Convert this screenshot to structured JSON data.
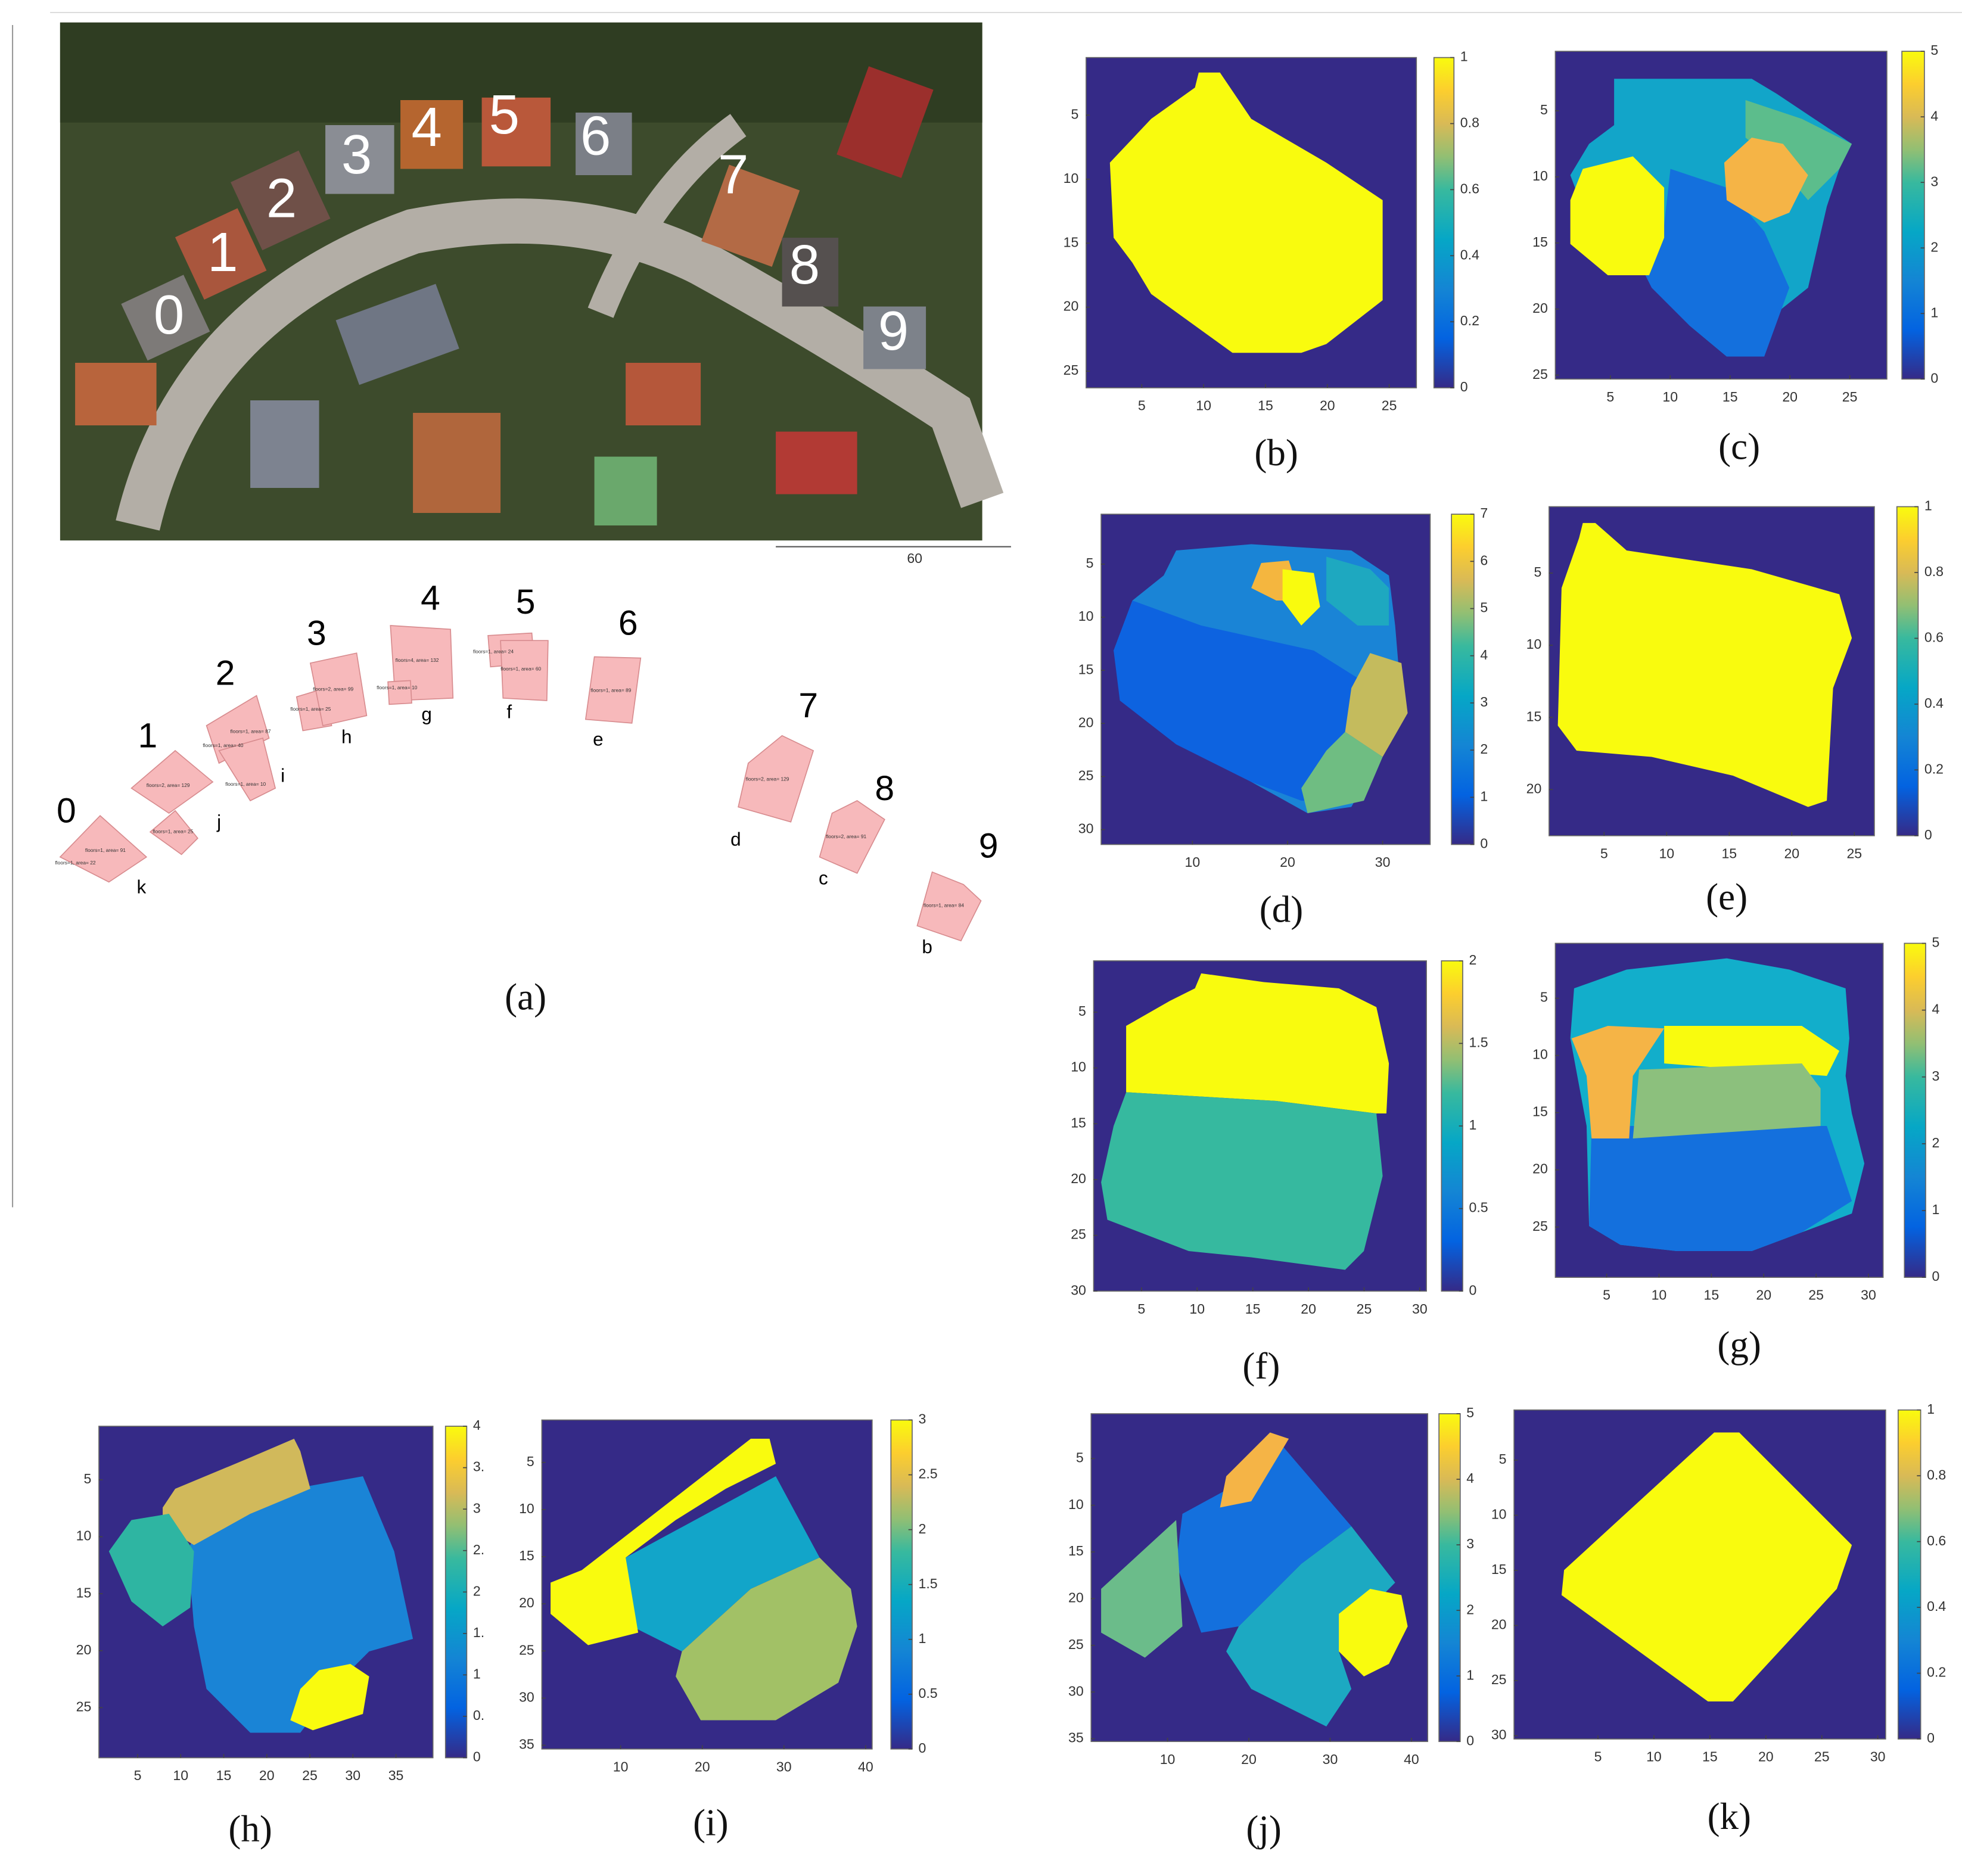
{
  "figure": {
    "panel_a": {
      "photo_labels": [
        "0",
        "1",
        "2",
        "3",
        "4",
        "5",
        "6",
        "7",
        "8",
        "9"
      ],
      "scale_label": "60",
      "house_labels": [
        "0",
        "1",
        "2",
        "3",
        "4",
        "5",
        "6",
        "7",
        "8",
        "9"
      ],
      "part_labels": [
        "k",
        "j",
        "i",
        "h",
        "g",
        "f",
        "e",
        "d",
        "c",
        "b"
      ],
      "annotations": [
        "floors=1, area= 91",
        "floors=1, area= 22",
        "floors=2, area= 129",
        "floors=1, area= 25",
        "floors=1, area= 87",
        "floors=1, area= 40",
        "floors=1, area= 10",
        "floors=2, area= 99",
        "floors=1, area= 25",
        "floors=4, area= 132",
        "floors=1, area= 10",
        "floors=1, area= 24",
        "floors=1, area= 60",
        "floors=1, area= 89",
        "floors=2, area= 129",
        "floors=2, area= 91",
        "floors=1, area= 84"
      ],
      "caption": "(a)"
    },
    "panels": [
      {
        "caption": "(b)",
        "xlim": [
          0.5,
          27.2
        ],
        "ylim": [
          0.5,
          26.3
        ],
        "xticks": [
          5,
          10,
          15,
          20,
          25
        ],
        "yticks": [
          5,
          10,
          15,
          20,
          25
        ],
        "clim": [
          0,
          1
        ],
        "cticks": [
          0,
          0.2,
          0.4,
          0.6,
          0.8,
          1
        ]
      },
      {
        "caption": "(c)",
        "xlim": [
          0.4,
          28.1
        ],
        "ylim": [
          0.5,
          25.3
        ],
        "xticks": [
          5,
          10,
          15,
          20,
          25
        ],
        "yticks": [
          5,
          10,
          15,
          20,
          25
        ],
        "clim": [
          0,
          5
        ],
        "cticks": [
          0,
          1,
          2,
          3,
          4,
          5
        ]
      },
      {
        "caption": "(d)",
        "xlim": [
          0.4,
          35
        ],
        "ylim": [
          0.3,
          31.4
        ],
        "xticks": [
          10,
          20,
          30
        ],
        "yticks": [
          5,
          10,
          15,
          20,
          25,
          30
        ],
        "clim": [
          0,
          7
        ],
        "cticks": [
          0,
          1,
          2,
          3,
          4,
          5,
          6,
          7
        ]
      },
      {
        "caption": "(e)",
        "xlim": [
          0.6,
          26.6
        ],
        "ylim": [
          0.4,
          23.2
        ],
        "xticks": [
          5,
          10,
          15,
          20,
          25
        ],
        "yticks": [
          5,
          10,
          15,
          20
        ],
        "clim": [
          0,
          1
        ],
        "cticks": [
          0,
          0.2,
          0.4,
          0.6,
          0.8,
          1
        ]
      },
      {
        "caption": "(f)",
        "xlim": [
          0.7,
          30.6
        ],
        "ylim": [
          0.4,
          30
        ],
        "xticks": [
          5,
          10,
          15,
          20,
          25,
          30
        ],
        "yticks": [
          5,
          10,
          15,
          20,
          25,
          30
        ],
        "clim": [
          0,
          2
        ],
        "cticks": [
          0,
          0.5,
          1,
          1.5,
          2
        ]
      },
      {
        "caption": "(g)",
        "xlim": [
          0.1,
          31.4
        ],
        "ylim": [
          0.2,
          29.4
        ],
        "xticks": [
          5,
          10,
          15,
          20,
          25,
          30
        ],
        "yticks": [
          5,
          10,
          15,
          20,
          25
        ],
        "clim": [
          0,
          5
        ],
        "cticks": [
          0,
          1,
          2,
          3,
          4,
          5
        ]
      },
      {
        "caption": "(h)",
        "xlim": [
          0.5,
          39.3
        ],
        "ylim": [
          0.3,
          29.4
        ],
        "xticks": [
          5,
          10,
          15,
          20,
          25,
          30,
          35
        ],
        "yticks": [
          5,
          10,
          15,
          20,
          25
        ],
        "clim": [
          0,
          4
        ],
        "cticks": [
          0,
          {
            "value": 0.5,
            "label": "0."
          },
          1,
          {
            "value": 1.5,
            "label": "1."
          },
          2,
          {
            "value": 2.5,
            "label": "2."
          },
          3,
          {
            "value": 3.5,
            "label": "3."
          },
          4
        ]
      },
      {
        "caption": "(i)",
        "xlim": [
          0.35,
          40.8
        ],
        "ylim": [
          0.5,
          35.4
        ],
        "xticks": [
          10,
          20,
          30,
          40
        ],
        "yticks": [
          5,
          10,
          15,
          20,
          25,
          30,
          35
        ],
        "clim": [
          0,
          3
        ],
        "cticks": [
          0,
          0.5,
          1,
          1.5,
          2,
          2.5,
          3
        ]
      },
      {
        "caption": "(j)",
        "xlim": [
          0.6,
          42
        ],
        "ylim": [
          0.2,
          35.3
        ],
        "xticks": [
          10,
          20,
          30,
          40
        ],
        "yticks": [
          5,
          10,
          15,
          20,
          25,
          30,
          35
        ],
        "clim": [
          0,
          5
        ],
        "cticks": [
          0,
          1,
          2,
          3,
          4,
          5
        ]
      },
      {
        "caption": "(k)",
        "xlim": [
          -2.5,
          30.7
        ],
        "ylim": [
          0.45,
          30.3
        ],
        "xticks": [
          5,
          10,
          15,
          20,
          25,
          30
        ],
        "yticks": [
          5,
          10,
          15,
          20,
          25,
          30
        ],
        "clim": [
          0,
          1
        ],
        "cticks": [
          0,
          0.2,
          0.4,
          0.6,
          0.8,
          1
        ]
      }
    ]
  }
}
